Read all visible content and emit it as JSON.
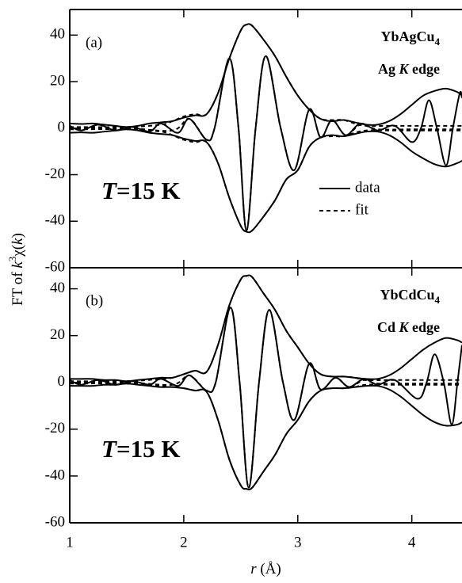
{
  "chart_data": [
    {
      "type": "line",
      "xlim": [
        1,
        4.44
      ],
      "ylim": [
        -60,
        51
      ],
      "xticks": [
        1,
        2,
        3,
        4
      ],
      "yticks": [
        -60,
        -40,
        -20,
        0,
        20,
        40
      ],
      "show_xtick_labels": false,
      "legend": "right",
      "annotations": {
        "panel": "(a)",
        "compound": [
          "YbAgCu",
          "4"
        ],
        "edge": [
          "Ag ",
          "K",
          " edge"
        ],
        "temperature": [
          "T",
          "=15 K"
        ]
      },
      "series": [
        {
          "name": "data",
          "color": "#000000",
          "dash": false,
          "x": [
            1,
            1.1,
            1.2,
            1.3,
            1.4,
            1.5,
            1.6,
            1.7,
            1.8,
            1.9,
            2,
            2.1,
            2.2,
            2.3,
            2.4,
            2.5,
            2.55,
            2.6,
            2.7,
            2.8,
            2.9,
            3,
            3.1,
            3.2,
            3.3,
            3.4,
            3.5,
            3.6,
            3.7,
            3.8,
            3.9,
            4,
            4.1,
            4.2,
            4.3,
            4.4,
            4.44
          ],
          "values": [
            2,
            1.8,
            2,
            1.5,
            1,
            0.5,
            1,
            2,
            2.5,
            3,
            4.5,
            5.5,
            6,
            15,
            30,
            42,
            44.5,
            44,
            38,
            31,
            22,
            14,
            8,
            4,
            3,
            3.5,
            2.5,
            1.5,
            1.5,
            3,
            6,
            10,
            14,
            16,
            17,
            15.5,
            14
          ]
        },
        {
          "color": "#000000",
          "dash": false,
          "x": [
            1,
            1.1,
            1.2,
            1.3,
            1.4,
            1.5,
            1.6,
            1.7,
            1.8,
            1.9,
            2,
            2.1,
            2.2,
            2.3,
            2.4,
            2.5,
            2.55,
            2.6,
            2.7,
            2.8,
            2.9,
            3,
            3.1,
            3.2,
            3.3,
            3.4,
            3.5,
            3.6,
            3.7,
            3.8,
            3.9,
            4,
            4.1,
            4.2,
            4.3,
            4.4,
            4.44
          ],
          "values": [
            -2,
            -1.8,
            -2,
            -1.5,
            -1,
            -0.5,
            -1,
            -2,
            -2.5,
            -3,
            -4.5,
            -5.5,
            -6,
            -15,
            -30,
            -42,
            -44.5,
            -44,
            -38,
            -31,
            -22,
            -18,
            -8,
            -4,
            -3,
            -3.5,
            -2.5,
            -1.5,
            -1.5,
            -3,
            -6,
            -10,
            -13,
            -15.5,
            -16.5,
            -15,
            -14
          ]
        },
        {
          "color": "#000000",
          "dash": false,
          "x": [
            1,
            1.1,
            1.25,
            1.4,
            1.55,
            1.7,
            1.8,
            1.95,
            2.05,
            2.2,
            2.27,
            2.4,
            2.48,
            2.55,
            2.63,
            2.72,
            2.85,
            2.97,
            3.1,
            3.2,
            3.3,
            3.42,
            3.55,
            3.7,
            3.85,
            4,
            4.08,
            4.15,
            4.22,
            4.3,
            4.36,
            4.42,
            4.44
          ],
          "values": [
            1,
            -1,
            1.5,
            -1,
            0.5,
            -1.5,
            2,
            -2,
            4,
            -5,
            0,
            30,
            0,
            -44,
            0,
            31,
            0,
            -18,
            8,
            -4,
            3.5,
            -3,
            2,
            -1,
            1,
            -6,
            0,
            12,
            0,
            -16,
            0,
            15,
            13
          ]
        },
        {
          "name": "fit",
          "color": "#000000",
          "dash": true,
          "x": [
            1,
            1.5,
            1.8,
            1.9,
            2,
            2.1,
            2.2,
            2.3,
            2.4,
            2.5,
            2.55,
            2.6,
            2.7,
            2.8,
            2.9,
            3,
            3.1,
            3.2,
            3.3,
            3.4,
            3.5,
            3.6,
            3.8,
            4,
            4.2,
            4.44
          ],
          "values": [
            0.5,
            0.5,
            1.5,
            3,
            5,
            6,
            6,
            15,
            30,
            42,
            44.5,
            44,
            38,
            31,
            22,
            14,
            8,
            4,
            3.5,
            3.5,
            2,
            1,
            1,
            1,
            1,
            1
          ]
        },
        {
          "color": "#000000",
          "dash": true,
          "x": [
            1,
            1.5,
            1.8,
            1.9,
            2,
            2.1,
            2.2,
            2.3,
            2.4,
            2.5,
            2.55,
            2.6,
            2.7,
            2.8,
            2.9,
            3,
            3.1,
            3.2,
            3.3,
            3.4,
            3.5,
            3.6,
            3.8,
            4,
            4.2,
            4.44
          ],
          "values": [
            -0.5,
            -0.5,
            -1.5,
            -3,
            -5,
            -6,
            -6,
            -15,
            -30,
            -42,
            -44.5,
            -44,
            -38,
            -31,
            -22,
            -18,
            -8,
            -4,
            -3.5,
            -3.5,
            -2,
            -1,
            -1,
            -1,
            -1,
            -1
          ]
        },
        {
          "color": "#000000",
          "dash": true,
          "x": [
            1,
            1.5,
            1.9,
            2.05,
            2.2,
            2.27,
            2.4,
            2.48,
            2.55,
            2.63,
            2.72,
            2.85,
            2.97,
            3.1,
            3.2,
            3.3,
            3.42,
            3.55,
            3.7,
            4,
            4.44
          ],
          "values": [
            0,
            0,
            -1,
            4,
            -5,
            0,
            30,
            0,
            -44,
            0,
            31,
            0,
            -18,
            8,
            -4,
            3.5,
            -3,
            1.5,
            -0.5,
            -0.5,
            -0.5
          ]
        }
      ]
    },
    {
      "type": "line",
      "xlim": [
        1,
        4.44
      ],
      "ylim": [
        -60,
        49
      ],
      "xticks": [
        1,
        2,
        3,
        4
      ],
      "yticks": [
        -60,
        -40,
        -20,
        0,
        20,
        40
      ],
      "show_xtick_labels": true,
      "xlabel": [
        "r",
        " (Å)"
      ],
      "ylabel": [
        "FT of ",
        "k",
        "3",
        "χ(",
        "k",
        ")"
      ],
      "annotations": {
        "panel": "(b)",
        "compound": [
          "YbCdCu",
          "4"
        ],
        "edge": [
          "Cd ",
          "K",
          " edge"
        ],
        "temperature": [
          "T",
          "=15 K"
        ]
      },
      "series": [
        {
          "color": "#000000",
          "dash": false,
          "x": [
            1,
            1.1,
            1.2,
            1.3,
            1.4,
            1.5,
            1.6,
            1.7,
            1.8,
            1.9,
            2,
            2.1,
            2.2,
            2.3,
            2.4,
            2.5,
            2.55,
            2.6,
            2.7,
            2.8,
            2.9,
            3,
            3.1,
            3.2,
            3.3,
            3.4,
            3.5,
            3.6,
            3.7,
            3.8,
            3.9,
            4,
            4.1,
            4.2,
            4.3,
            4.4,
            4.44
          ],
          "values": [
            1.5,
            1.5,
            1.5,
            1,
            1,
            0.5,
            1,
            1.5,
            2,
            2,
            3.5,
            5,
            4.5,
            16,
            33,
            44,
            45.5,
            45,
            38,
            31,
            22,
            15,
            8,
            3.5,
            2.5,
            2.5,
            2,
            1.5,
            1.5,
            3,
            6,
            10,
            14,
            17,
            19,
            18,
            17
          ]
        },
        {
          "color": "#000000",
          "dash": false,
          "x": [
            1,
            1.1,
            1.2,
            1.3,
            1.4,
            1.5,
            1.6,
            1.7,
            1.8,
            1.9,
            2,
            2.1,
            2.2,
            2.3,
            2.4,
            2.5,
            2.55,
            2.6,
            2.7,
            2.8,
            2.9,
            3,
            3.1,
            3.2,
            3.3,
            3.4,
            3.5,
            3.6,
            3.7,
            3.8,
            3.9,
            4,
            4.1,
            4.2,
            4.3,
            4.4,
            4.44
          ],
          "values": [
            -1.5,
            -1.5,
            -1.5,
            -1,
            -1,
            -0.5,
            -1,
            -1.5,
            -2,
            -2,
            -2.5,
            -3.5,
            -4,
            -16,
            -33,
            -44,
            -45.5,
            -45,
            -38,
            -31,
            -22,
            -16,
            -8,
            -3.5,
            -2.5,
            -2.5,
            -2,
            -1.5,
            -1.5,
            -3,
            -6,
            -10,
            -14,
            -17,
            -18.5,
            -18,
            -17
          ]
        },
        {
          "color": "#000000",
          "dash": false,
          "x": [
            1,
            1.1,
            1.25,
            1.4,
            1.55,
            1.7,
            1.8,
            1.95,
            2.05,
            2.2,
            2.28,
            2.41,
            2.49,
            2.57,
            2.66,
            2.75,
            2.87,
            2.97,
            3.1,
            3.2,
            3.33,
            3.45,
            3.58,
            3.7,
            3.85,
            4.05,
            4.13,
            4.2,
            4.28,
            4.35,
            4.4,
            4.44
          ],
          "values": [
            1,
            -1,
            1,
            -1,
            0.5,
            -1,
            1.5,
            -1.5,
            3,
            -3.5,
            0,
            32,
            0,
            -45,
            0,
            31,
            0,
            -16,
            8,
            -3,
            2,
            -2,
            1.5,
            -1,
            1,
            -7,
            0,
            12,
            0,
            -18,
            0,
            16
          ]
        },
        {
          "color": "#000000",
          "dash": true,
          "x": [
            1,
            1.5,
            1.8,
            1.9,
            2,
            2.1,
            2.2,
            2.3,
            2.4,
            2.5,
            2.55,
            2.6,
            2.7,
            2.8,
            2.9,
            3,
            3.1,
            3.2,
            3.3,
            3.4,
            3.5,
            3.6,
            3.8,
            4,
            4.2,
            4.44
          ],
          "values": [
            0.5,
            0.5,
            1.5,
            2,
            3.5,
            5,
            4.5,
            16,
            33,
            44,
            45.5,
            45,
            38,
            31,
            22,
            15,
            8,
            3.5,
            2.5,
            2.5,
            2,
            1,
            1,
            1,
            1,
            1
          ]
        },
        {
          "color": "#000000",
          "dash": true,
          "x": [
            1,
            1.5,
            1.8,
            1.9,
            2,
            2.1,
            2.2,
            2.3,
            2.4,
            2.5,
            2.55,
            2.6,
            2.7,
            2.8,
            2.9,
            3,
            3.1,
            3.2,
            3.3,
            3.4,
            3.5,
            3.6,
            3.8,
            4,
            4.2,
            4.44
          ],
          "values": [
            -0.5,
            -0.5,
            -1.5,
            -2,
            -2.5,
            -3.5,
            -4,
            -16,
            -33,
            -44,
            -45.5,
            -45,
            -38,
            -31,
            -22,
            -16,
            -8,
            -3.5,
            -2.5,
            -2.5,
            -2,
            -1,
            -1,
            -1,
            -1,
            -1
          ]
        },
        {
          "color": "#000000",
          "dash": true,
          "x": [
            1,
            1.5,
            1.9,
            2.05,
            2.2,
            2.28,
            2.41,
            2.49,
            2.57,
            2.66,
            2.75,
            2.87,
            2.97,
            3.1,
            3.2,
            3.33,
            3.45,
            3.58,
            3.7,
            4,
            4.44
          ],
          "values": [
            0,
            0,
            -1,
            3,
            -3.5,
            0,
            32,
            0,
            -45,
            0,
            31,
            0,
            -16,
            8,
            -3,
            2,
            -2,
            1,
            -0.5,
            -0.5,
            -0.5
          ]
        }
      ]
    }
  ]
}
